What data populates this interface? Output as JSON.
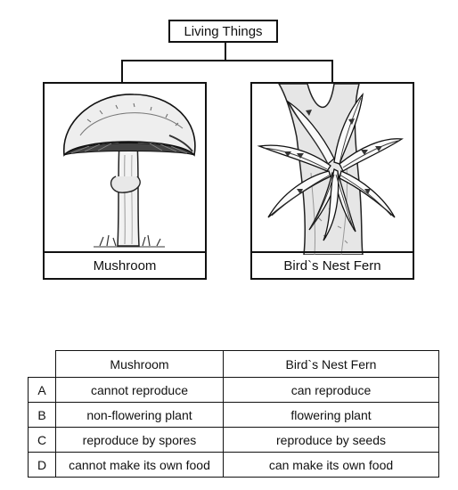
{
  "root": {
    "label": "Living Things"
  },
  "panels": [
    {
      "caption": "Mushroom",
      "icon": "mushroom-icon"
    },
    {
      "caption": "Bird`s Nest Fern",
      "icon": "fern-icon"
    }
  ],
  "table": {
    "headers": [
      "Mushroom",
      "Bird`s Nest Fern"
    ],
    "rows": [
      {
        "label": "A",
        "mushroom": "cannot reproduce",
        "fern": "can reproduce"
      },
      {
        "label": "B",
        "mushroom": "non-flowering plant",
        "fern": "flowering plant"
      },
      {
        "label": "C",
        "mushroom": "reproduce by spores",
        "fern": "reproduce by seeds"
      },
      {
        "label": "D",
        "mushroom": "cannot make its own food",
        "fern": "can make its own food"
      }
    ]
  }
}
